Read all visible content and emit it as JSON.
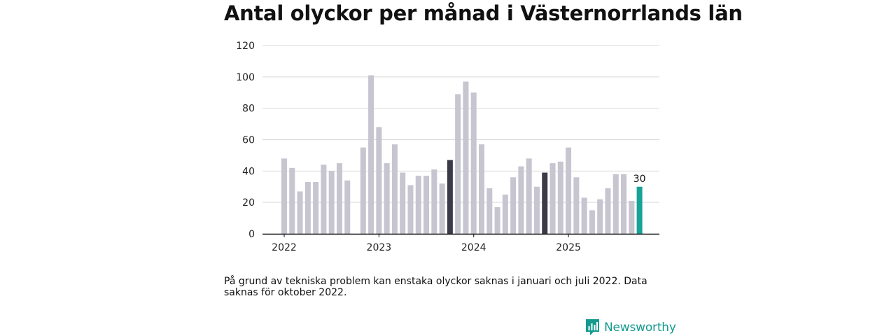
{
  "chart_data": {
    "type": "bar",
    "title": "Antal olyckor per månad i Västernorrlands län",
    "xlabel": "",
    "ylabel": "",
    "ylim": [
      0,
      120
    ],
    "yticks": [
      0,
      20,
      40,
      60,
      80,
      100,
      120
    ],
    "xtick_labels": [
      {
        "label": "2022",
        "index": 0
      },
      {
        "label": "2023",
        "index": 12
      },
      {
        "label": "2024",
        "index": 24
      },
      {
        "label": "2025",
        "index": 36
      }
    ],
    "grid": true,
    "colors": {
      "default": "#c6c5d0",
      "highlight": "#3b3a48",
      "latest": "#17a398",
      "grid": "#d9d9d9",
      "axis": "#111111"
    },
    "series": [
      {
        "name": "Antal olyckor",
        "categories": [
          "2022-01",
          "2022-02",
          "2022-03",
          "2022-04",
          "2022-05",
          "2022-06",
          "2022-07",
          "2022-08",
          "2022-09",
          "2022-10",
          "2022-11",
          "2022-12",
          "2023-01",
          "2023-02",
          "2023-03",
          "2023-04",
          "2023-05",
          "2023-06",
          "2023-07",
          "2023-08",
          "2023-09",
          "2023-10",
          "2023-11",
          "2023-12",
          "2024-01",
          "2024-02",
          "2024-03",
          "2024-04",
          "2024-05",
          "2024-06",
          "2024-07",
          "2024-08",
          "2024-09",
          "2024-10",
          "2024-11",
          "2024-12",
          "2025-01",
          "2025-02",
          "2025-03",
          "2025-04",
          "2025-05",
          "2025-06",
          "2025-07",
          "2025-08",
          "2025-09",
          "2025-10"
        ],
        "values": [
          48,
          42,
          27,
          33,
          33,
          44,
          40,
          45,
          34,
          null,
          55,
          101,
          68,
          45,
          57,
          39,
          31,
          37,
          37,
          41,
          32,
          47,
          89,
          97,
          90,
          57,
          29,
          17,
          25,
          36,
          43,
          48,
          30,
          39,
          45,
          46,
          55,
          36,
          23,
          15,
          22,
          29,
          38,
          38,
          21,
          30
        ],
        "highlight": [
          {
            "category": "2023-10",
            "style": "highlight"
          },
          {
            "category": "2024-10",
            "style": "highlight"
          },
          {
            "category": "2025-10",
            "style": "latest"
          }
        ]
      }
    ],
    "annotations": [
      {
        "category": "2025-10",
        "text": "30"
      }
    ]
  },
  "footnote": "På grund av tekniska problem kan enstaka olyckor saknas i januari och juli 2022. Data saknas för oktober 2022.",
  "brand": {
    "name": "Newsworthy",
    "logo_icon": "bar-chart-speech-bubble-icon",
    "color": "#149a8f"
  }
}
